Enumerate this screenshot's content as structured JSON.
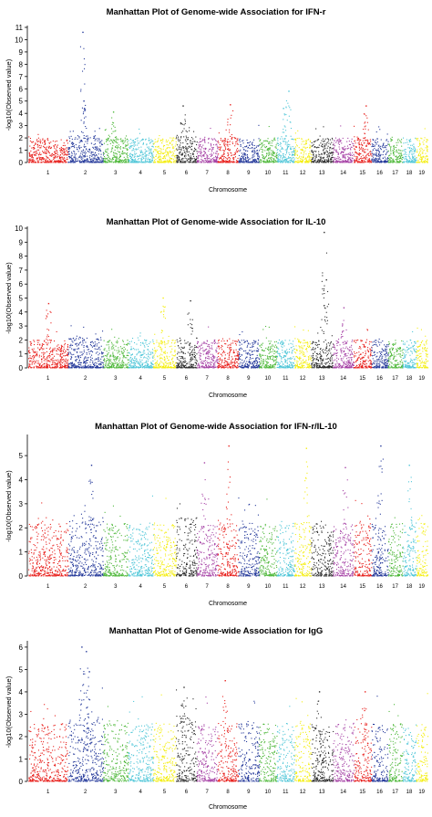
{
  "chart_data": [
    {
      "type": "scatter",
      "title": "Manhattan Plot of Genome-wide Association for IFN-r",
      "xlabel": "Chromosome",
      "ylabel": "-log10(Observed value)",
      "ylim": [
        0,
        11
      ],
      "yticks": [
        0,
        1,
        2,
        3,
        4,
        5,
        6,
        7,
        8,
        9,
        10,
        11
      ],
      "grid": false,
      "legend": "none",
      "chromosomes": [
        "1",
        "2",
        "3",
        "4",
        "5",
        "6",
        "7",
        "8",
        "9",
        "10",
        "11",
        "12",
        "13",
        "14",
        "15",
        "16",
        "17",
        "18",
        "19"
      ],
      "colors": [
        "#e8221e",
        "#23389a",
        "#4fb83b",
        "#4fc6d8",
        "#f4ee13",
        "#2c2c2c",
        "#a643a6",
        "#e8221e",
        "#23389a",
        "#4fb83b",
        "#4fc6d8",
        "#f4ee13",
        "#2c2c2c",
        "#a643a6",
        "#e8221e",
        "#23389a",
        "#4fb83b",
        "#4fc6d8",
        "#f4ee13"
      ],
      "peaks": [
        {
          "chromosome": "2",
          "value": 10.6
        },
        {
          "chromosome": "2",
          "value": 5.0
        },
        {
          "chromosome": "3",
          "value": 4.1
        },
        {
          "chromosome": "6",
          "value": 4.6
        },
        {
          "chromosome": "8",
          "value": 4.7
        },
        {
          "chromosome": "11",
          "value": 5.8
        },
        {
          "chromosome": "11",
          "value": 4.4
        },
        {
          "chromosome": "15",
          "value": 4.6
        }
      ]
    },
    {
      "type": "scatter",
      "title": "Manhattan Plot of Genome-wide Association for IL-10",
      "xlabel": "Chromosome",
      "ylabel": "-log10(Observed value)",
      "ylim": [
        0,
        10
      ],
      "yticks": [
        0,
        1,
        2,
        3,
        4,
        5,
        6,
        7,
        8,
        9,
        10
      ],
      "grid": false,
      "legend": "none",
      "chromosomes": [
        "1",
        "2",
        "3",
        "4",
        "5",
        "6",
        "7",
        "8",
        "9",
        "10",
        "11",
        "12",
        "13",
        "14",
        "15",
        "16",
        "17",
        "18",
        "19"
      ],
      "colors": [
        "#e8221e",
        "#23389a",
        "#4fb83b",
        "#4fc6d8",
        "#f4ee13",
        "#2c2c2c",
        "#a643a6",
        "#e8221e",
        "#23389a",
        "#4fb83b",
        "#4fc6d8",
        "#f4ee13",
        "#2c2c2c",
        "#a643a6",
        "#e8221e",
        "#23389a",
        "#4fb83b",
        "#4fc6d8",
        "#f4ee13"
      ],
      "peaks": [
        {
          "chromosome": "1",
          "value": 4.6
        },
        {
          "chromosome": "5",
          "value": 5.0
        },
        {
          "chromosome": "6",
          "value": 4.8
        },
        {
          "chromosome": "13",
          "value": 9.7
        },
        {
          "chromosome": "13",
          "value": 6.3
        },
        {
          "chromosome": "14",
          "value": 4.3
        }
      ]
    },
    {
      "type": "scatter",
      "title": "Manhattan Plot of Genome-wide Association for IFN-r/IL-10",
      "xlabel": "Chromosome",
      "ylabel": "-log10(Observed value)",
      "ylim": [
        0,
        5.8
      ],
      "yticks": [
        0,
        1,
        2,
        3,
        4,
        5
      ],
      "grid": false,
      "legend": "none",
      "chromosomes": [
        "1",
        "2",
        "3",
        "4",
        "5",
        "6",
        "7",
        "8",
        "9",
        "10",
        "11",
        "12",
        "13",
        "14",
        "15",
        "16",
        "17",
        "18",
        "19"
      ],
      "colors": [
        "#e8221e",
        "#23389a",
        "#4fb83b",
        "#4fc6d8",
        "#f4ee13",
        "#2c2c2c",
        "#a643a6",
        "#e8221e",
        "#23389a",
        "#4fb83b",
        "#4fc6d8",
        "#f4ee13",
        "#2c2c2c",
        "#a643a6",
        "#e8221e",
        "#23389a",
        "#4fb83b",
        "#4fc6d8",
        "#f4ee13"
      ],
      "peaks": [
        {
          "chromosome": "2",
          "value": 4.6
        },
        {
          "chromosome": "7",
          "value": 4.7
        },
        {
          "chromosome": "8",
          "value": 5.4
        },
        {
          "chromosome": "12",
          "value": 5.3
        },
        {
          "chromosome": "14",
          "value": 4.5
        },
        {
          "chromosome": "16",
          "value": 5.4
        },
        {
          "chromosome": "18",
          "value": 4.6
        }
      ]
    },
    {
      "type": "scatter",
      "title": "Manhattan Plot of Genome-wide Association for IgG",
      "xlabel": "Chromosome",
      "ylabel": "-log10(Observed value)",
      "ylim": [
        0,
        6.2
      ],
      "yticks": [
        0,
        1,
        2,
        3,
        4,
        5,
        6
      ],
      "grid": false,
      "legend": "none",
      "chromosomes": [
        "1",
        "2",
        "3",
        "4",
        "5",
        "6",
        "7",
        "8",
        "9",
        "10",
        "11",
        "12",
        "13",
        "14",
        "15",
        "16",
        "17",
        "18",
        "19"
      ],
      "colors": [
        "#e8221e",
        "#23389a",
        "#4fb83b",
        "#4fc6d8",
        "#f4ee13",
        "#2c2c2c",
        "#a643a6",
        "#e8221e",
        "#23389a",
        "#4fb83b",
        "#4fc6d8",
        "#f4ee13",
        "#2c2c2c",
        "#a643a6",
        "#e8221e",
        "#23389a",
        "#4fb83b",
        "#4fc6d8",
        "#f4ee13"
      ],
      "peaks": [
        {
          "chromosome": "2",
          "value": 6.0
        },
        {
          "chromosome": "2",
          "value": 5.8
        },
        {
          "chromosome": "2",
          "value": 4.9
        },
        {
          "chromosome": "8",
          "value": 4.5
        },
        {
          "chromosome": "6",
          "value": 4.2
        },
        {
          "chromosome": "13",
          "value": 4.0
        },
        {
          "chromosome": "15",
          "value": 4.0
        }
      ]
    }
  ]
}
